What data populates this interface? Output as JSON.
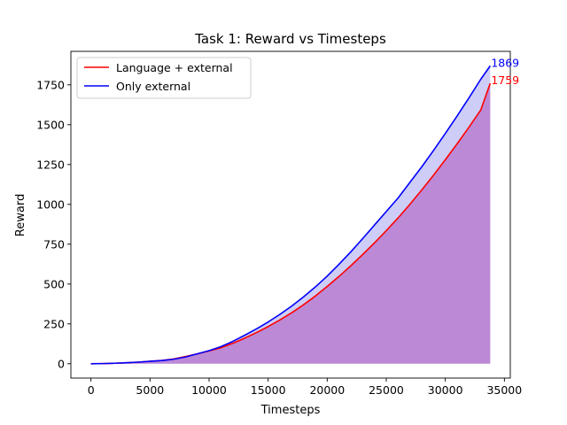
{
  "chart_data": {
    "type": "line",
    "title": "Task 1: Reward vs Timesteps",
    "xlabel": "Timesteps",
    "ylabel": "Reward",
    "xlim": [
      -1700,
      35500
    ],
    "ylim": [
      -90,
      1960
    ],
    "x_ticks": [
      0,
      5000,
      10000,
      15000,
      20000,
      25000,
      30000,
      35000
    ],
    "y_ticks": [
      0,
      250,
      500,
      750,
      1000,
      1250,
      1500,
      1750
    ],
    "grid": false,
    "legend_position": "top-left",
    "series": [
      {
        "name": "Language + external",
        "color": "#ff0000",
        "fill_color": "#b05cc0",
        "end_label": "1759",
        "x": [
          0,
          1000,
          2000,
          3000,
          4000,
          5000,
          6000,
          7000,
          8000,
          9000,
          10000,
          11000,
          12000,
          13000,
          14000,
          15000,
          16000,
          17000,
          18000,
          19000,
          20000,
          21000,
          22000,
          23000,
          24000,
          25000,
          26000,
          27000,
          28000,
          29000,
          30000,
          31000,
          32000,
          33000,
          33800
        ],
        "values": [
          0,
          1,
          3,
          6,
          10,
          15,
          21,
          30,
          45,
          62,
          80,
          100,
          128,
          160,
          195,
          233,
          275,
          320,
          370,
          425,
          485,
          548,
          615,
          685,
          758,
          835,
          915,
          1000,
          1090,
          1183,
          1280,
          1380,
          1484,
          1592,
          1759
        ]
      },
      {
        "name": "Only external",
        "color": "#0000ff",
        "fill_color": "#9c9cf0",
        "end_label": "1869",
        "x": [
          0,
          1000,
          2000,
          3000,
          4000,
          5000,
          6000,
          7000,
          8000,
          9000,
          10000,
          11000,
          12000,
          13000,
          14000,
          15000,
          16000,
          17000,
          18000,
          19000,
          20000,
          21000,
          22000,
          23000,
          24000,
          25000,
          26000,
          27000,
          28000,
          29000,
          30000,
          31000,
          32000,
          33000,
          33800
        ],
        "values": [
          0,
          1,
          3,
          6,
          10,
          15,
          20,
          28,
          42,
          62,
          82,
          107,
          140,
          178,
          218,
          262,
          310,
          362,
          420,
          482,
          550,
          624,
          702,
          785,
          870,
          955,
          1040,
          1138,
          1235,
          1338,
          1445,
          1555,
          1668,
          1785,
          1869
        ]
      }
    ]
  }
}
